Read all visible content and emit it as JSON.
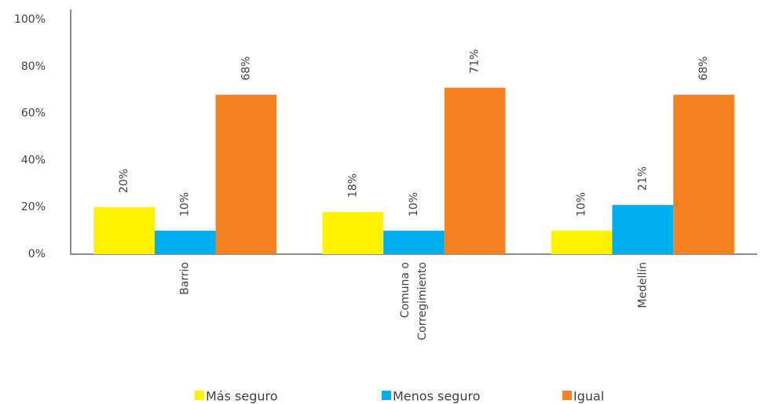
{
  "chart_data": {
    "type": "bar",
    "categories": [
      "Barrio",
      "Comuna o Corregimiento",
      "Medellín"
    ],
    "series": [
      {
        "name": "Más seguro",
        "color": "#fff200",
        "values": [
          20,
          18,
          10
        ],
        "value_labels": [
          "20%",
          "18%",
          "10%"
        ]
      },
      {
        "name": "Menos seguro",
        "color": "#00adef",
        "values": [
          10,
          10,
          21
        ],
        "value_labels": [
          "10%",
          "10%",
          "21%"
        ]
      },
      {
        "name": "Igual",
        "color": "#f58220",
        "values": [
          68,
          71,
          68
        ],
        "value_labels": [
          "68%",
          "71%",
          "68%"
        ]
      }
    ],
    "ylim": [
      0,
      100
    ],
    "yticks": [
      {
        "value": 0,
        "label": "0%"
      },
      {
        "value": 20,
        "label": "20%"
      },
      {
        "value": 40,
        "label": "40%"
      },
      {
        "value": 60,
        "label": "60%"
      },
      {
        "value": 80,
        "label": "80%"
      },
      {
        "value": 100,
        "label": "100%"
      }
    ],
    "grid": false,
    "legend": "bottom"
  }
}
